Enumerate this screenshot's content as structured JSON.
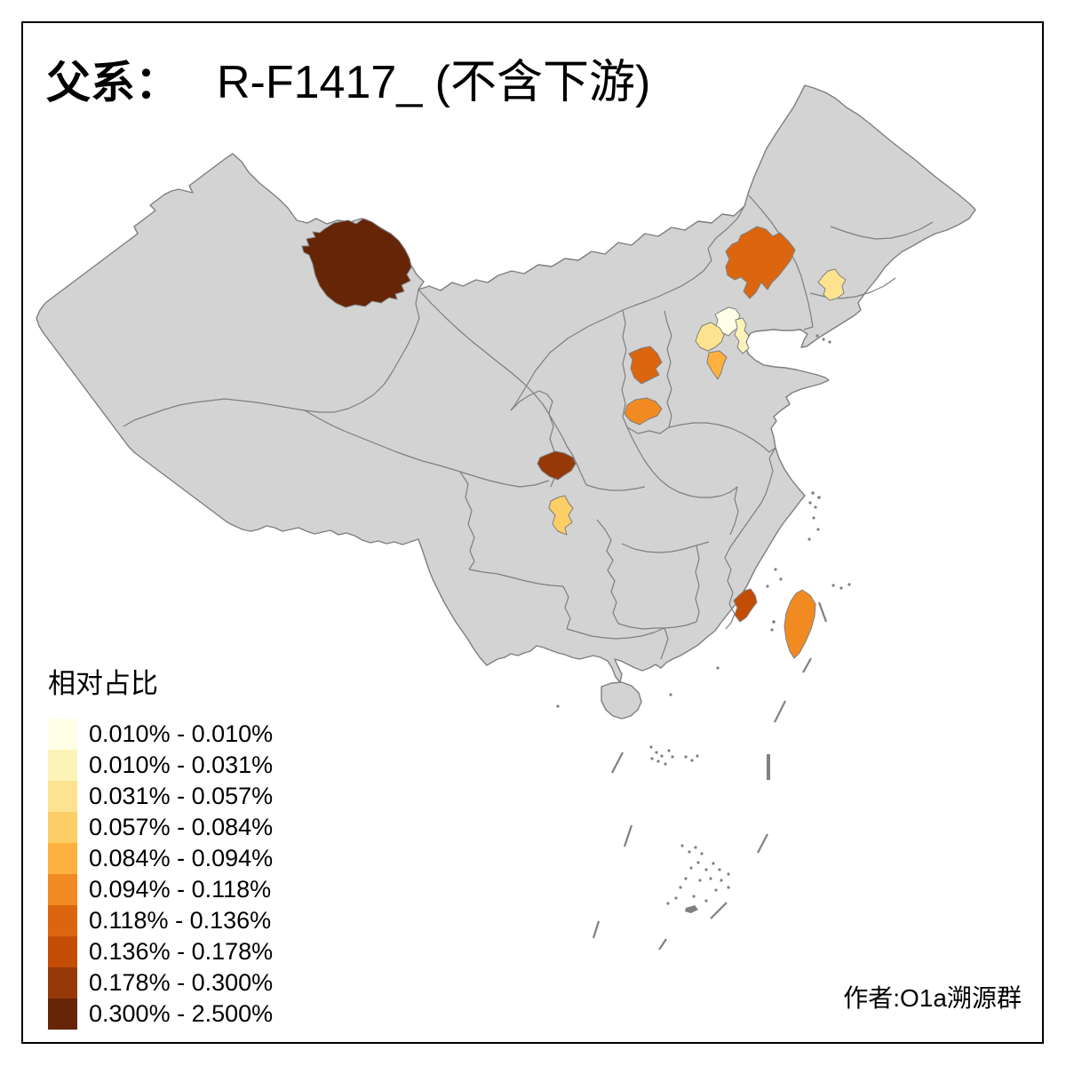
{
  "title": {
    "prefix": "父系：",
    "main": "R-F1417_ (不含下游)"
  },
  "legend": {
    "title": "相对占比",
    "items": [
      {
        "color": "#FFFFE5",
        "label": "0.010% - 0.010%"
      },
      {
        "color": "#FCF3B9",
        "label": "0.010% - 0.031%"
      },
      {
        "color": "#FDE38F",
        "label": "0.031% - 0.057%"
      },
      {
        "color": "#FDCE66",
        "label": "0.057% - 0.084%"
      },
      {
        "color": "#FDB03E",
        "label": "0.084% - 0.094%"
      },
      {
        "color": "#F28A22",
        "label": "0.094% - 0.118%"
      },
      {
        "color": "#DC660F",
        "label": "0.118% - 0.136%"
      },
      {
        "color": "#C34D04",
        "label": "0.136% - 0.178%"
      },
      {
        "color": "#963808",
        "label": "0.178% - 0.300%"
      },
      {
        "color": "#662506",
        "label": "0.300% - 2.500%"
      }
    ]
  },
  "attribution": {
    "text": "作者:O1a溯源群"
  },
  "map": {
    "background": "#FFFFFF",
    "land_fill": "#D3D3D3",
    "border_color": "#7E7E7E",
    "frame_color": "#000000",
    "sea_mark_color": "#808080",
    "regions": [
      {
        "id": "xinjiang-north",
        "color": "#662506"
      },
      {
        "id": "inner-mongolia-east",
        "color": "#DC660F"
      },
      {
        "id": "liaoning-west",
        "color": "#FDE38F"
      },
      {
        "id": "beijing",
        "color": "#FFFFE5"
      },
      {
        "id": "tianjin",
        "color": "#FCF3B9"
      },
      {
        "id": "hebei-central",
        "color": "#FDE38F"
      },
      {
        "id": "hebei-south",
        "color": "#FDB03E"
      },
      {
        "id": "shanxi-west",
        "color": "#DC660F"
      },
      {
        "id": "shanxi-south",
        "color": "#F28A22"
      },
      {
        "id": "gansu-southeast",
        "color": "#963808"
      },
      {
        "id": "sichuan-north",
        "color": "#FDCE66"
      },
      {
        "id": "fujian-coast",
        "color": "#C34D04"
      },
      {
        "id": "taiwan",
        "color": "#F28A22"
      }
    ]
  }
}
